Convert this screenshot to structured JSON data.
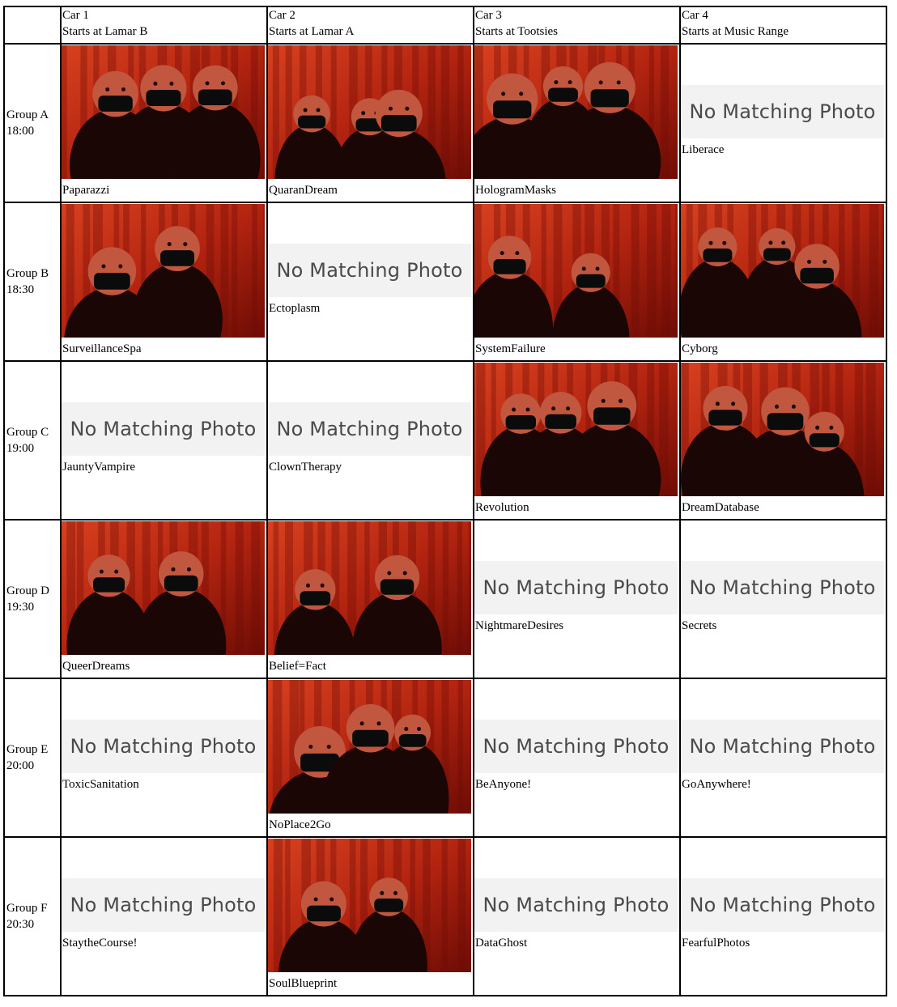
{
  "no_photo_label": "No Matching Photo",
  "cars": [
    {
      "name": "Car 1",
      "start": "Starts at Lamar B"
    },
    {
      "name": "Car 2",
      "start": "Starts at Lamar A"
    },
    {
      "name": "Car 3",
      "start": "Starts at Tootsies"
    },
    {
      "name": "Car 4",
      "start": "Starts at Music Range"
    }
  ],
  "groups": [
    {
      "name": "Group A",
      "time": "18:00",
      "slots": [
        {
          "caption": "Paparazzi",
          "has_photo": true
        },
        {
          "caption": "QuaranDream",
          "has_photo": true
        },
        {
          "caption": "HologramMasks",
          "has_photo": true
        },
        {
          "caption": "Liberace",
          "has_photo": false
        }
      ]
    },
    {
      "name": "Group B",
      "time": "18:30",
      "slots": [
        {
          "caption": "SurveillanceSpa",
          "has_photo": true
        },
        {
          "caption": "Ectoplasm",
          "has_photo": false
        },
        {
          "caption": "SystemFailure",
          "has_photo": true
        },
        {
          "caption": "Cyborg",
          "has_photo": true
        }
      ]
    },
    {
      "name": "Group C",
      "time": "19:00",
      "slots": [
        {
          "caption": "JauntyVampire",
          "has_photo": false
        },
        {
          "caption": "ClownTherapy",
          "has_photo": false
        },
        {
          "caption": "Revolution",
          "has_photo": true
        },
        {
          "caption": "DreamDatabase",
          "has_photo": true
        }
      ]
    },
    {
      "name": "Group D",
      "time": "19:30",
      "slots": [
        {
          "caption": "QueerDreams",
          "has_photo": true
        },
        {
          "caption": "Belief=Fact",
          "has_photo": true
        },
        {
          "caption": "NightmareDesires",
          "has_photo": false
        },
        {
          "caption": "Secrets",
          "has_photo": false
        }
      ]
    },
    {
      "name": "Group E",
      "time": "20:00",
      "slots": [
        {
          "caption": "ToxicSanitation",
          "has_photo": false
        },
        {
          "caption": "NoPlace2Go",
          "has_photo": true
        },
        {
          "caption": "BeAnyone!",
          "has_photo": false
        },
        {
          "caption": "GoAnywhere!",
          "has_photo": false
        }
      ]
    },
    {
      "name": "Group F",
      "time": "20:30",
      "slots": [
        {
          "caption": "StaytheCourse!",
          "has_photo": false
        },
        {
          "caption": "SoulBlueprint",
          "has_photo": true
        },
        {
          "caption": "DataGhost",
          "has_photo": false
        },
        {
          "caption": "FearfulPhotos",
          "has_photo": false
        }
      ]
    }
  ],
  "photo_palette": {
    "curtain_dark": "#6e0c05",
    "curtain_mid": "#b32410",
    "curtain_light": "#d8411f",
    "figure_dark": "#1a0604",
    "figure_skin": "#c0573e",
    "mask": "#0b0b0b"
  }
}
